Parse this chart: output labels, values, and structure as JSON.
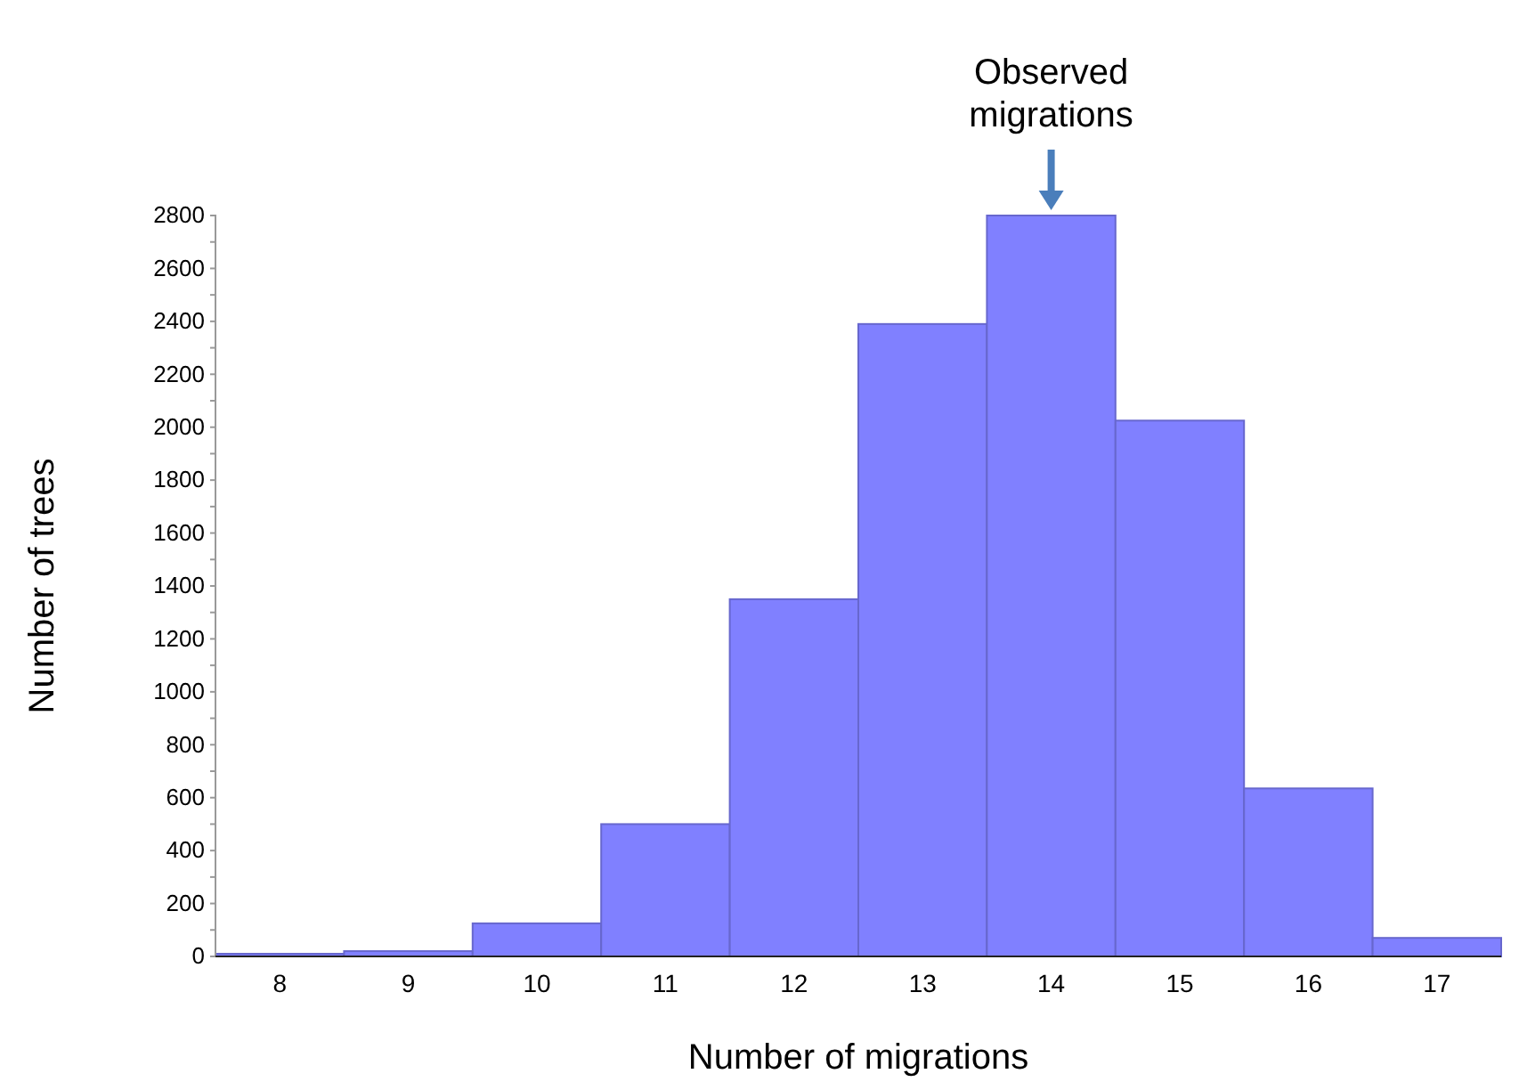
{
  "chart_data": {
    "type": "histogram",
    "bins": [
      7.5,
      8.5,
      9.5,
      10.5,
      11.5,
      12.5,
      13.5,
      14.5,
      15.5,
      16.5,
      17.5
    ],
    "values": [
      10,
      20,
      125,
      500,
      1350,
      2390,
      2800,
      2025,
      635,
      70
    ],
    "color": "#8080ff",
    "xlim": [
      7.5,
      17.5
    ],
    "xticks": [
      8,
      9,
      10,
      11,
      12,
      13,
      14,
      15,
      16,
      17
    ],
    "ylim": [
      0,
      2800
    ],
    "yticks": [
      0,
      {
        "value": 100,
        "label": null
      },
      200,
      {
        "value": 300,
        "label": null
      },
      400,
      {
        "value": 500,
        "label": null
      },
      600,
      {
        "value": 700,
        "label": null
      },
      800,
      {
        "value": 900,
        "label": null
      },
      1000,
      {
        "value": 1100,
        "label": null
      },
      1200,
      {
        "value": 1300,
        "label": null
      },
      1400,
      {
        "value": 1500,
        "label": null
      },
      1600,
      {
        "value": 1700,
        "label": null
      },
      1800,
      {
        "value": 1900,
        "label": null
      },
      2000,
      {
        "value": 2100,
        "label": null
      },
      2200,
      {
        "value": 2300,
        "label": null
      },
      2400,
      {
        "value": 2500,
        "label": null
      },
      2600,
      {
        "value": 2700,
        "label": null
      },
      2800
    ],
    "xlabel": "Number of migrations",
    "ylabel": "Number of trees",
    "grid": false,
    "annotations": [
      {
        "text": "Observed migrations",
        "x": 14,
        "y": 2800
      }
    ]
  }
}
